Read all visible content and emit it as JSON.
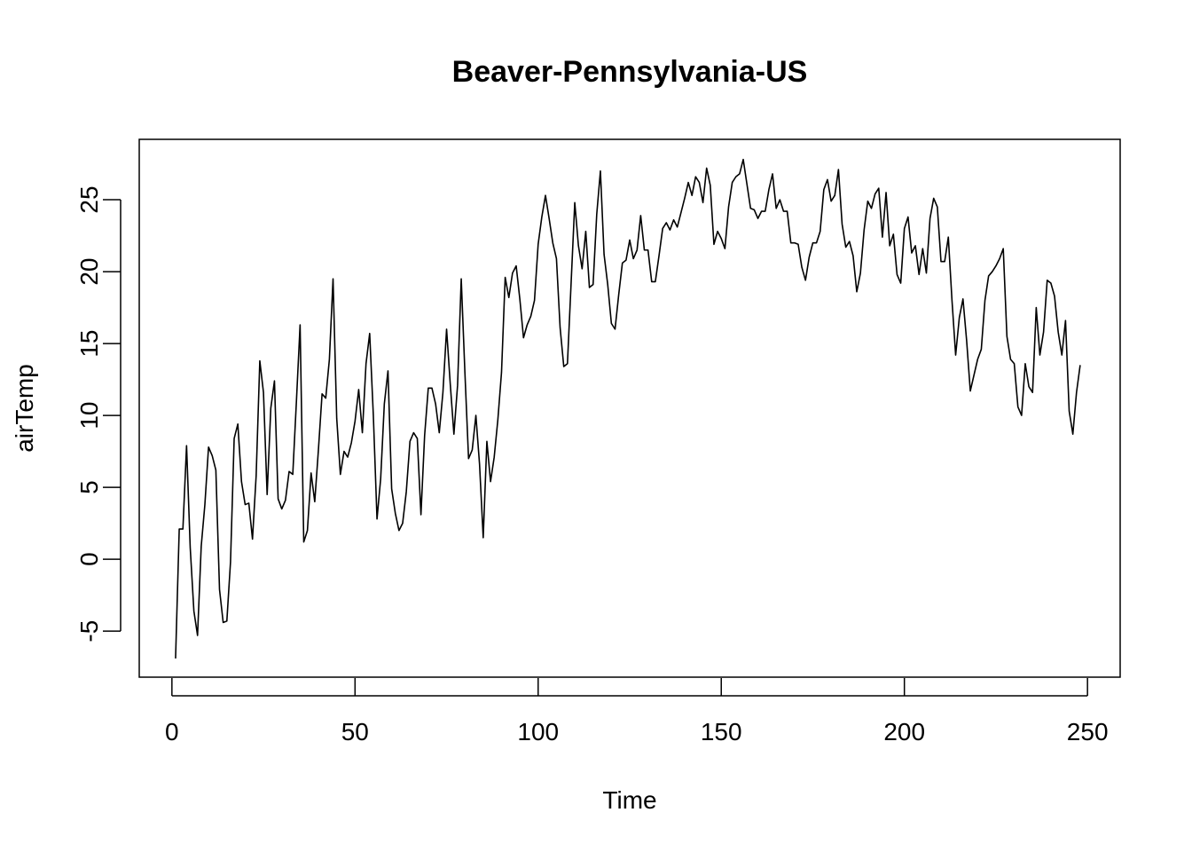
{
  "chart_data": {
    "type": "line",
    "title": "Beaver-Pennsylvania-US",
    "xlabel": "Time",
    "ylabel": "airTemp",
    "xlim": [
      -8.92,
      258.92
    ],
    "ylim": [
      -8.2,
      29.2
    ],
    "x_ticks": [
      "0",
      "50",
      "100",
      "150",
      "200",
      "250"
    ],
    "y_ticks": [
      "-5",
      "0",
      "5",
      "10",
      "15",
      "20",
      "25"
    ],
    "x_tick_values": [
      0,
      50,
      100,
      150,
      200,
      250
    ],
    "y_tick_values": [
      -5,
      0,
      5,
      10,
      15,
      20,
      25
    ],
    "grid": false,
    "box": true,
    "series": [
      {
        "color": "#000000",
        "x_start": 1,
        "values": [
          -6.9,
          2.1,
          2.1,
          7.9,
          0.8,
          -3.6,
          -5.3,
          0.9,
          3.8,
          7.8,
          7.2,
          6.2,
          -2.1,
          -4.4,
          -4.3,
          -0.2,
          8.4,
          9.4,
          5.4,
          3.8,
          3.9,
          1.4,
          5.8,
          13.8,
          11.6,
          4.5,
          10.5,
          12.4,
          4.2,
          3.5,
          4.1,
          6.1,
          5.9,
          11.0,
          16.3,
          1.2,
          2.0,
          6.0,
          4.0,
          7.6,
          11.5,
          11.2,
          13.9,
          19.5,
          9.8,
          5.9,
          7.5,
          7.1,
          8.1,
          9.6,
          11.8,
          8.8,
          13.6,
          15.7,
          10.0,
          2.8,
          5.6,
          10.8,
          13.1,
          4.9,
          3.2,
          2.0,
          2.5,
          4.7,
          8.2,
          8.8,
          8.4,
          3.1,
          8.6,
          11.9,
          11.9,
          10.8,
          8.8,
          11.6,
          16.0,
          12.2,
          8.7,
          12.1,
          19.5,
          13.0,
          7.0,
          7.6,
          10.0,
          6.6,
          1.5,
          8.2,
          5.4,
          7.1,
          9.7,
          13.0,
          19.6,
          18.2,
          19.9,
          20.4,
          18.1,
          15.4,
          16.3,
          16.9,
          18.0,
          21.9,
          23.8,
          25.3,
          23.7,
          22.0,
          20.9,
          16.1,
          13.4,
          13.6,
          19.2,
          24.8,
          21.8,
          20.2,
          22.8,
          18.9,
          19.1,
          24.0,
          27.0,
          21.2,
          19.1,
          16.4,
          16.0,
          18.4,
          20.6,
          20.8,
          22.2,
          20.9,
          21.5,
          23.9,
          21.5,
          21.5,
          19.3,
          19.3,
          21.1,
          23.0,
          23.4,
          22.9,
          23.6,
          23.1,
          24.1,
          25.1,
          26.2,
          25.3,
          26.6,
          26.2,
          24.8,
          27.2,
          26.0,
          21.9,
          22.8,
          22.3,
          21.6,
          24.5,
          26.2,
          26.6,
          26.8,
          27.8,
          26.1,
          24.4,
          24.3,
          23.7,
          24.2,
          24.2,
          25.7,
          26.8,
          24.4,
          25.0,
          24.2,
          24.2,
          22.0,
          22.0,
          21.9,
          20.3,
          19.4,
          21.0,
          22.0,
          22.0,
          22.8,
          25.7,
          26.4,
          24.9,
          25.3,
          27.1,
          23.3,
          21.7,
          22.1,
          21.1,
          18.6,
          19.9,
          22.9,
          24.9,
          24.4,
          25.4,
          25.8,
          22.4,
          25.5,
          21.8,
          22.6,
          19.8,
          19.2,
          23.0,
          23.8,
          21.3,
          21.8,
          19.8,
          21.6,
          19.9,
          23.7,
          25.1,
          24.5,
          20.7,
          20.7,
          22.4,
          18.0,
          14.2,
          16.8,
          18.1,
          15.2,
          11.7,
          12.8,
          13.9,
          14.6,
          18.0,
          19.7,
          20.0,
          20.4,
          20.9,
          21.6,
          15.5,
          13.9,
          13.6,
          10.6,
          10.0,
          13.6,
          12.0,
          11.6,
          17.5,
          14.2,
          15.8,
          19.4,
          19.2,
          18.3,
          15.8,
          14.2,
          16.6,
          10.3,
          8.7,
          11.6,
          13.5
        ]
      }
    ]
  }
}
